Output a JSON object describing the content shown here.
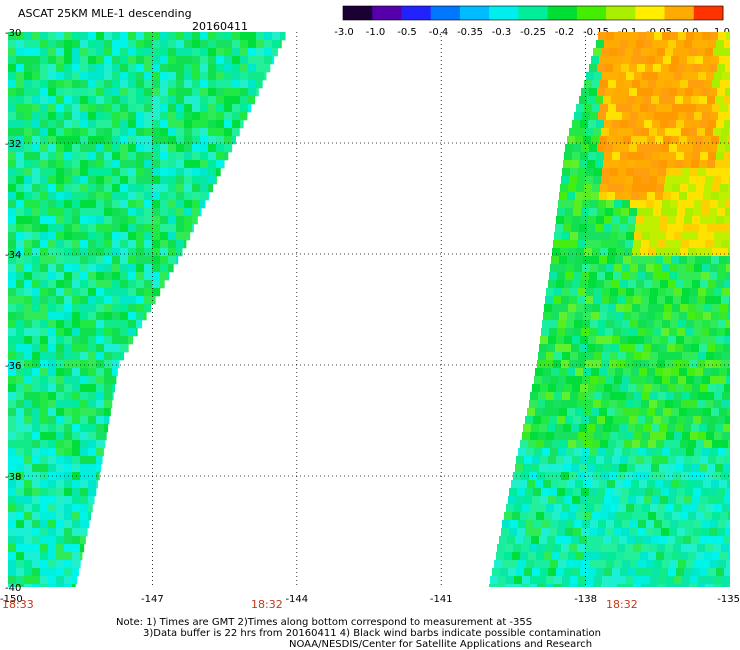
{
  "header": {
    "title": "ASCAT 25KM MLE-1 descending",
    "date": "20160411"
  },
  "colorbar": {
    "labels": [
      "-3.0",
      "-1.0",
      "-0.5",
      "-0.4",
      "-0.35",
      "-0.3",
      "-0.25",
      "-0.2",
      "-0.15",
      "-0.1",
      "-0.05",
      "0.0",
      "1.0"
    ],
    "colors": [
      "#1a0033",
      "#5500aa",
      "#2222ff",
      "#0077ff",
      "#00bbff",
      "#00eeee",
      "#00ee99",
      "#00dd33",
      "#44ee00",
      "#aaee00",
      "#ffee00",
      "#ffaa00",
      "#ff3300"
    ]
  },
  "time_labels": {
    "left": "18:33",
    "middle": "18:32",
    "right": "18:32"
  },
  "notes": [
    "Note: 1) Times are GMT 2)Times along bottom correspond to measurement at -35S",
    "3)Data buffer is 22 hrs from 20160411 4) Black wind barbs indicate possible contamination",
    "NOAA/NESDIS/Center for Satellite Applications and Research"
  ],
  "chart_data": {
    "type": "heatmap",
    "title": "ASCAT 25KM MLE-1 descending",
    "date": "20160411",
    "x_ticks": [
      "-150",
      "-147",
      "-144",
      "-141",
      "-138",
      "-135"
    ],
    "y_ticks": [
      "-30",
      "-32",
      "-34",
      "-36",
      "-38",
      "-40"
    ],
    "xlim": [
      -150,
      -135
    ],
    "ylim": [
      -40,
      -30
    ],
    "grid": true,
    "swaths": [
      {
        "name": "west",
        "lon_west": -150,
        "east_edge": [
          [
            -30,
            -144.2
          ],
          [
            -32,
            -145.3
          ],
          [
            -34,
            -146.4
          ],
          [
            -36,
            -147.7
          ],
          [
            -38,
            -148.1
          ],
          [
            -40,
            -148.6
          ]
        ],
        "dominant_values": [
          -0.2,
          -0.25,
          -0.3
        ]
      },
      {
        "name": "east",
        "lon_east": -135,
        "west_edge": [
          [
            -30,
            -137.7
          ],
          [
            -32,
            -138.4
          ],
          [
            -34,
            -138.7
          ],
          [
            -36,
            -139.0
          ],
          [
            -38,
            -139.5
          ],
          [
            -40,
            -140.0
          ]
        ],
        "dominant_values": [
          -0.2,
          -0.15,
          -0.1,
          0.0
        ],
        "warm_region": {
          "lat": [
            -30.0,
            -33.0
          ],
          "lon": [
            -137.7,
            -135.3
          ],
          "value": 0.0
        }
      }
    ]
  }
}
